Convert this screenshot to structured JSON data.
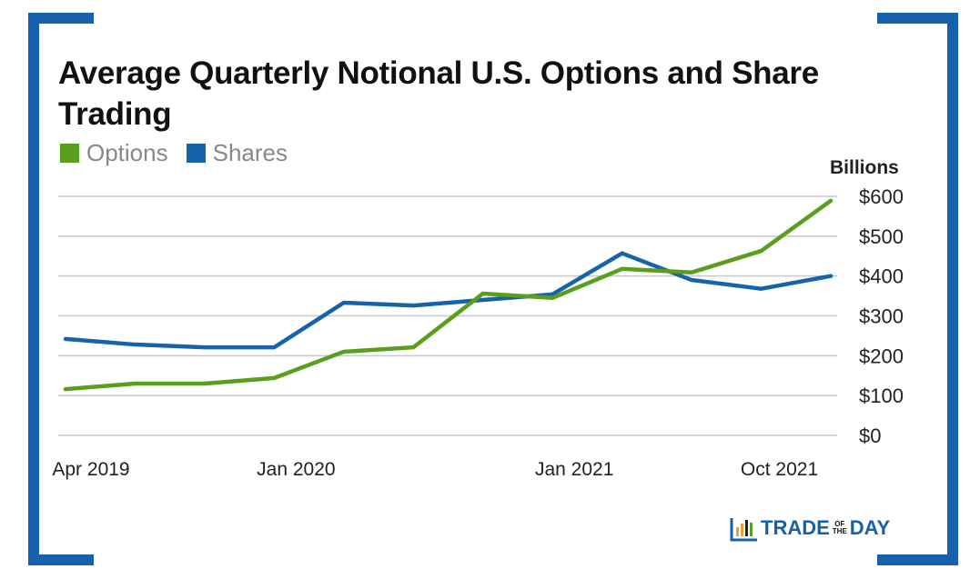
{
  "chart_data": {
    "type": "line",
    "title": "Average Quarterly Notional U.S. Options and Share Trading",
    "ylabel": "Billions",
    "ylim": [
      0,
      600
    ],
    "y_ticks": [
      "$0",
      "$100",
      "$200",
      "$300",
      "$400",
      "$500",
      "$600"
    ],
    "y_tick_values": [
      0,
      100,
      200,
      300,
      400,
      500,
      600
    ],
    "x": [
      "Apr 2019",
      "Jul 2019",
      "Oct 2019",
      "Jan 2020",
      "Apr 2020",
      "Jul 2020",
      "Oct 2020",
      "Jan 2021",
      "Apr 2021",
      "Jul 2021",
      "Oct 2021",
      "Jan 2022"
    ],
    "x_tick_labels": [
      {
        "index": 0,
        "label": "Apr 2019"
      },
      {
        "index": 3,
        "label": "Jan 2020"
      },
      {
        "index": 7,
        "label": "Jan 2021"
      },
      {
        "index": 10,
        "label": "Oct 2021"
      }
    ],
    "grid": true,
    "legend": "top-left",
    "series": [
      {
        "name": "Options",
        "color": "#5a9e1e",
        "values": [
          116,
          130,
          130,
          144,
          210,
          221,
          356,
          345,
          418,
          409,
          463,
          589
        ]
      },
      {
        "name": "Shares",
        "color": "#1663ab",
        "values": [
          242,
          228,
          221,
          221,
          333,
          326,
          340,
          354,
          457,
          390,
          368,
          400
        ]
      }
    ]
  },
  "frame_color": "#1760ad",
  "logo": {
    "text_left": "TRADE",
    "text_of": "OF",
    "text_the": "THE",
    "text_right": "DAY"
  }
}
